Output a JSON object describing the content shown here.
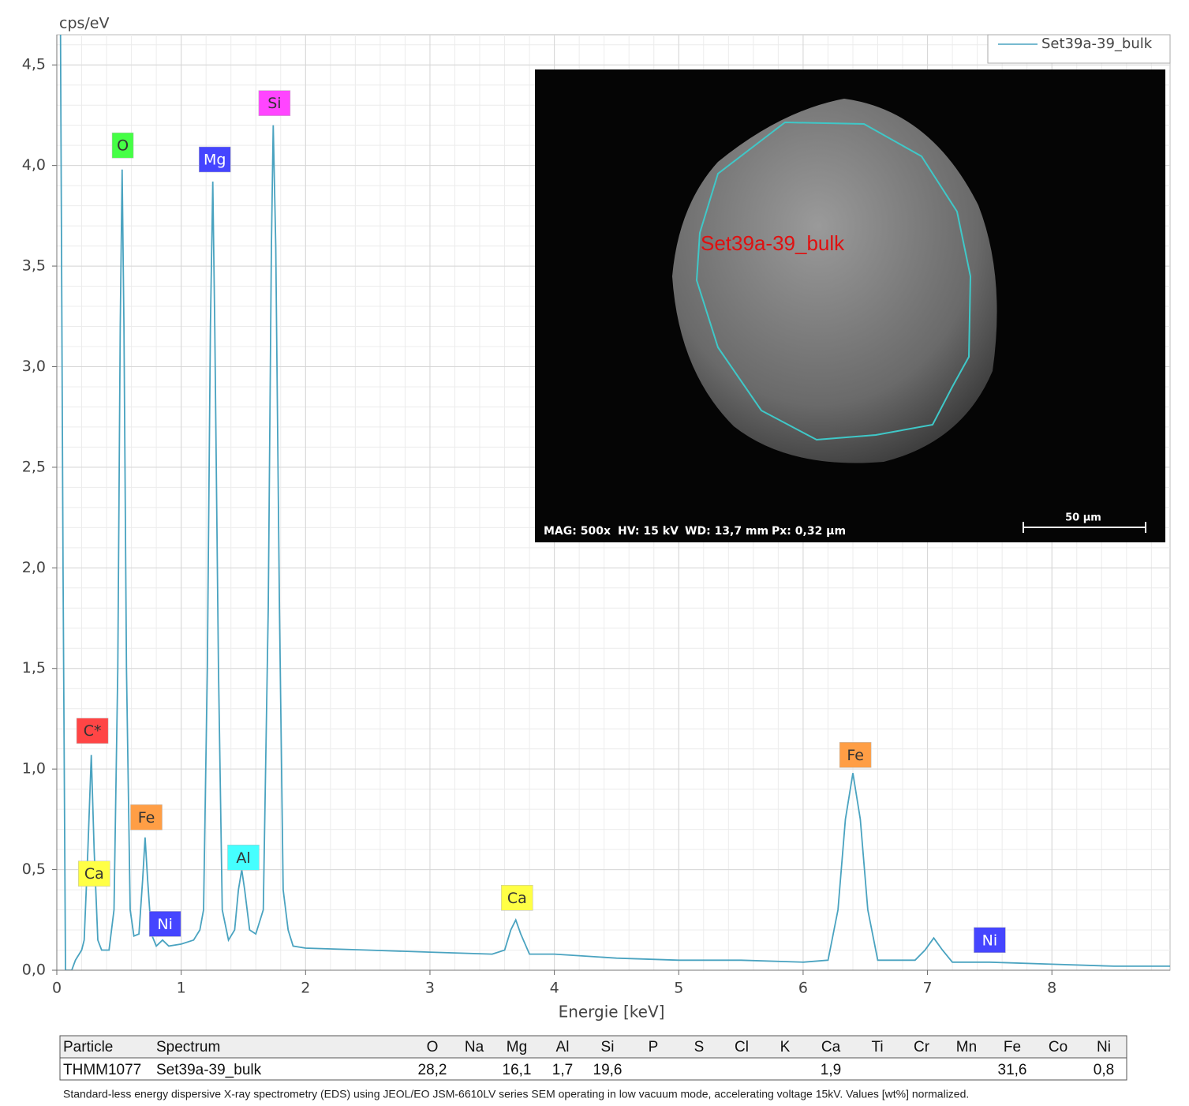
{
  "chart_data": {
    "type": "line",
    "ylabel": "cps/eV",
    "xlabel": "Energie [keV]",
    "xlim": [
      0,
      8.95
    ],
    "ylim": [
      0,
      4.65
    ],
    "xticks": [
      0,
      1,
      2,
      3,
      4,
      5,
      6,
      7,
      8
    ],
    "yticks": [
      {
        "value": 0,
        "label": "0,0"
      },
      {
        "value": 0.5,
        "label": "0,5"
      },
      {
        "value": 1,
        "label": "1,0"
      },
      {
        "value": 1.5,
        "label": "1,5"
      },
      {
        "value": 2,
        "label": "2,0"
      },
      {
        "value": 2.5,
        "label": "2,5"
      },
      {
        "value": 3,
        "label": "3,0"
      },
      {
        "value": 3.5,
        "label": "3,5"
      },
      {
        "value": 4,
        "label": "4,0"
      },
      {
        "value": 4.5,
        "label": "4,5"
      }
    ],
    "grid": true,
    "grid_subdivisions": 5,
    "legend": "upper right",
    "series": [
      {
        "name": "Set39a-39_bulk",
        "color": "#4aa3c0",
        "x": [
          0.03,
          0.05,
          0.07,
          0.12,
          0.15,
          0.2,
          0.22,
          0.25,
          0.277,
          0.3,
          0.33,
          0.36,
          0.42,
          0.46,
          0.49,
          0.51,
          0.525,
          0.54,
          0.56,
          0.59,
          0.62,
          0.66,
          0.69,
          0.71,
          0.73,
          0.76,
          0.8,
          0.85,
          0.9,
          1.0,
          1.1,
          1.15,
          1.18,
          1.21,
          1.235,
          1.254,
          1.27,
          1.3,
          1.33,
          1.38,
          1.43,
          1.46,
          1.487,
          1.51,
          1.55,
          1.6,
          1.66,
          1.7,
          1.725,
          1.74,
          1.76,
          1.79,
          1.82,
          1.86,
          1.9,
          2.0,
          2.5,
          3.0,
          3.5,
          3.6,
          3.65,
          3.69,
          3.73,
          3.8,
          4.0,
          4.5,
          5.0,
          5.5,
          6.0,
          6.2,
          6.28,
          6.34,
          6.4,
          6.46,
          6.52,
          6.6,
          6.9,
          6.98,
          7.05,
          7.12,
          7.2,
          7.5,
          8.0,
          8.5,
          8.95
        ],
        "values": [
          4.65,
          2.0,
          0.0,
          0.0,
          0.05,
          0.1,
          0.15,
          0.6,
          1.07,
          0.6,
          0.15,
          0.1,
          0.1,
          0.3,
          1.5,
          3.2,
          3.98,
          3.2,
          1.5,
          0.3,
          0.17,
          0.18,
          0.45,
          0.66,
          0.45,
          0.18,
          0.12,
          0.15,
          0.12,
          0.13,
          0.15,
          0.2,
          0.3,
          1.5,
          3.2,
          3.92,
          3.2,
          1.5,
          0.3,
          0.15,
          0.2,
          0.4,
          0.5,
          0.4,
          0.2,
          0.18,
          0.3,
          1.8,
          3.6,
          4.2,
          3.6,
          1.8,
          0.4,
          0.2,
          0.12,
          0.11,
          0.1,
          0.09,
          0.08,
          0.1,
          0.2,
          0.25,
          0.18,
          0.08,
          0.08,
          0.06,
          0.05,
          0.05,
          0.04,
          0.05,
          0.3,
          0.75,
          0.98,
          0.75,
          0.3,
          0.05,
          0.05,
          0.1,
          0.16,
          0.1,
          0.04,
          0.04,
          0.03,
          0.02,
          0.02
        ]
      }
    ],
    "annotations": [
      {
        "text": "C*",
        "x": 0.286,
        "y": 1.19,
        "color": "#ff4545",
        "text_color": "#333333"
      },
      {
        "text": "Ca",
        "x": 0.3,
        "y": 0.48,
        "color": "#ffff45",
        "text_color": "#333333"
      },
      {
        "text": "O",
        "x": 0.53,
        "y": 4.1,
        "color": "#45ff45",
        "text_color": "#333333"
      },
      {
        "text": "Fe",
        "x": 0.72,
        "y": 0.76,
        "color": "#ff9e45",
        "text_color": "#333333"
      },
      {
        "text": "Ni",
        "x": 0.87,
        "y": 0.23,
        "color": "#4545ff",
        "text_color": "#ffffff"
      },
      {
        "text": "Mg",
        "x": 1.27,
        "y": 4.03,
        "color": "#4545ff",
        "text_color": "#ffffff"
      },
      {
        "text": "Al",
        "x": 1.5,
        "y": 0.56,
        "color": "#45ffff",
        "text_color": "#333333"
      },
      {
        "text": "Si",
        "x": 1.75,
        "y": 4.31,
        "color": "#ff45ff",
        "text_color": "#333333"
      },
      {
        "text": "Ca",
        "x": 3.7,
        "y": 0.36,
        "color": "#ffff45",
        "text_color": "#333333"
      },
      {
        "text": "Fe",
        "x": 6.42,
        "y": 1.07,
        "color": "#ff9e45",
        "text_color": "#333333"
      },
      {
        "text": "Ni",
        "x": 7.5,
        "y": 0.15,
        "color": "#4545ff",
        "text_color": "#ffffff"
      }
    ]
  },
  "inset": {
    "overlay_label": "Set39a-39_bulk",
    "info": [
      "MAG: 500x",
      "HV: 15 kV",
      "WD: 13,7 mm",
      "Px: 0,32 µm"
    ],
    "scale": "50 µm"
  },
  "table": {
    "header": [
      "Particle",
      "Spectrum",
      "O",
      "Na",
      "Mg",
      "Al",
      "Si",
      "P",
      "S",
      "Cl",
      "K",
      "Ca",
      "Ti",
      "Cr",
      "Mn",
      "Fe",
      "Co",
      "Ni"
    ],
    "rows": [
      [
        "THMM1077",
        "Set39a-39_bulk",
        "28,2",
        null,
        "16,1",
        "1,7",
        "19,6",
        null,
        null,
        null,
        null,
        "1,9",
        null,
        null,
        null,
        "31,6",
        null,
        "0,8"
      ]
    ]
  },
  "caption": "Standard-less energy dispersive X-ray spectrometry (EDS) using JEOL/EO JSM-6610LV series SEM operating in low vacuum mode, accelerating voltage 15kV. Values [wt%] normalized."
}
